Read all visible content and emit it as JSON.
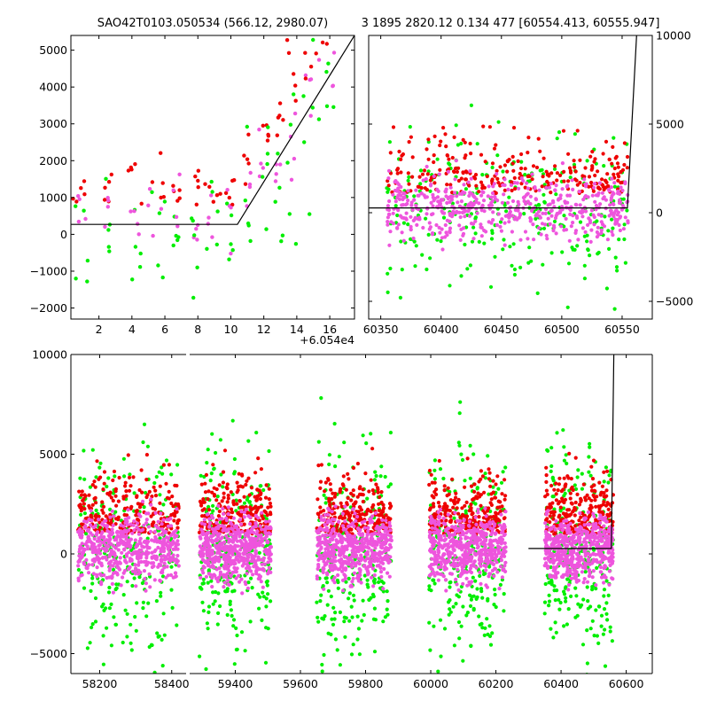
{
  "figure": {
    "title_left": "SAO42T0103.050534 (566.12, 2980.07)",
    "title_right": "3 1895 2820.12 0.134 477 [60554.413, 60555.947]",
    "offset_label": "+6.054e4"
  },
  "colors": {
    "green": "#00ee00",
    "red": "#ee0000",
    "pink": "#ee55dd",
    "model_line": "#000000"
  },
  "chart_data": [
    {
      "name": "zoom-panel",
      "type": "scatter",
      "xlim": [
        0.3,
        17.5
      ],
      "ylim": [
        -2300,
        5400
      ],
      "xticks": [
        2,
        4,
        6,
        8,
        10,
        12,
        14,
        16
      ],
      "yticks": [
        -2000,
        -1000,
        0,
        1000,
        2000,
        3000,
        4000,
        5000
      ],
      "xtick_labels": [
        "2",
        "4",
        "6",
        "8",
        "10",
        "12",
        "14",
        "16"
      ],
      "ytick_labels": [
        "−2000",
        "−1000",
        "0",
        "1000",
        "2000",
        "3000",
        "4000",
        "5000"
      ],
      "x_offset_label": "+6.054e4",
      "model_line": [
        [
          0.3,
          270
        ],
        [
          10.4,
          270
        ],
        [
          17.5,
          5400
        ]
      ],
      "point_clusters": [
        [
          0.3,
          1.5
        ],
        [
          2.2,
          2.9
        ],
        [
          3.7,
          4.6
        ],
        [
          4.9,
          6.0
        ],
        [
          6.5,
          6.9
        ],
        [
          7.6,
          8.1
        ],
        [
          8.4,
          9.4
        ],
        [
          9.7,
          10.2
        ],
        [
          10.8,
          11.2
        ],
        [
          11.7,
          12.3
        ],
        [
          12.7,
          13.2
        ],
        [
          13.4,
          14.0
        ],
        [
          14.4,
          15.0
        ],
        [
          15.1,
          16.3
        ]
      ],
      "series": [
        {
          "color": "green"
        },
        {
          "color": "red"
        },
        {
          "color": "pink"
        }
      ]
    },
    {
      "name": "full-panel",
      "type": "scatter",
      "xlim": [
        60340,
        60575
      ],
      "ylim": [
        -6000,
        10000
      ],
      "xticks": [
        60350,
        60400,
        60450,
        60500,
        60550
      ],
      "yticks": [
        -5000,
        0,
        5000,
        10000
      ],
      "xtick_labels": [
        "60350",
        "60400",
        "60450",
        "60500",
        "60550"
      ],
      "ytick_labels": [
        "−5000",
        "0",
        "5000",
        "10000"
      ],
      "model_line": [
        [
          60340,
          270
        ],
        [
          60554.4,
          270
        ],
        [
          60562,
          10000
        ]
      ],
      "band": [
        60355,
        60555
      ],
      "series": [
        {
          "color": "green"
        },
        {
          "color": "red"
        },
        {
          "color": "pink"
        }
      ]
    },
    {
      "name": "all-seasons-panel",
      "type": "scatter",
      "xlim": [
        58120,
        58440,
        59260,
        60680
      ],
      "ylim": [
        -6000,
        10000
      ],
      "xticks": [
        58200,
        58400,
        59400,
        59600,
        59800,
        60000,
        60200,
        60400,
        60600
      ],
      "yticks": [
        -5000,
        0,
        5000,
        10000
      ],
      "xtick_labels": [
        "58200",
        "58400",
        "59400",
        "59600",
        "59800",
        "60000",
        "60200",
        "60400",
        "60600"
      ],
      "ytick_labels": [
        "−5000",
        "0",
        "5000",
        "10000"
      ],
      "model_line": [
        [
          60300,
          270
        ],
        [
          60554.4,
          270
        ],
        [
          60562,
          10000
        ]
      ],
      "seasons": [
        [
          58140,
          58420
        ],
        [
          59290,
          59510
        ],
        [
          59650,
          59880
        ],
        [
          59995,
          60230
        ],
        [
          60350,
          60560
        ]
      ],
      "series": [
        {
          "color": "green"
        },
        {
          "color": "red"
        },
        {
          "color": "pink"
        }
      ]
    }
  ]
}
